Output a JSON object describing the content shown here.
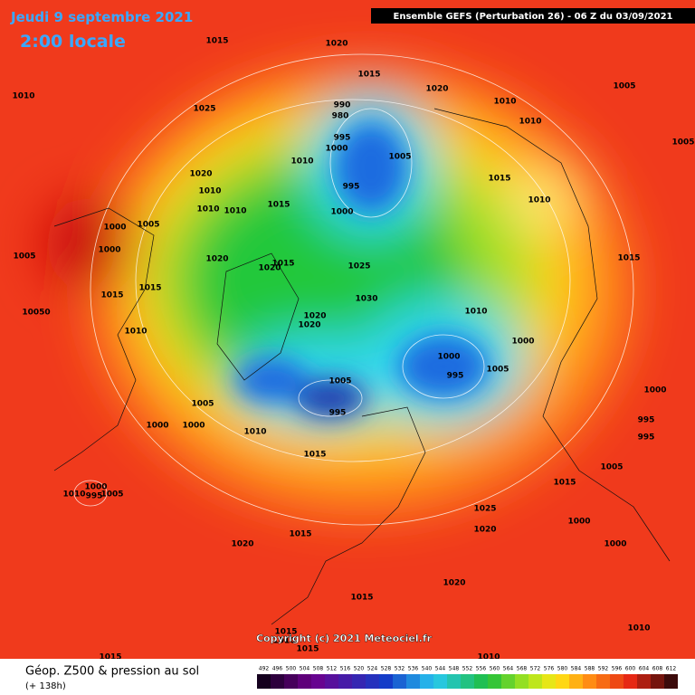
{
  "header": {
    "title": "Jeudi 9 septembre 2021",
    "subtitle": "2:00 locale",
    "model": "Ensemble GEFS  (Perturbation 26)  -  06 Z du 03/09/2021"
  },
  "copyright": "Copyright (c) 2021 Meteociel.fr",
  "footer": {
    "parameter": "Géop. Z500 & pression au sol",
    "lead": "(+ 138h)"
  },
  "legend": {
    "scale": [
      492,
      496,
      500,
      504,
      508,
      512,
      516,
      520,
      524,
      528,
      532,
      536,
      540,
      544,
      548,
      552,
      556,
      560,
      564,
      568,
      572,
      576,
      580,
      584,
      588,
      592,
      596,
      600,
      604,
      608,
      612
    ]
  },
  "isobar_labels": [
    "1015",
    "1020",
    "1010",
    "1025",
    "1015",
    "1020",
    "1005",
    "990",
    "980",
    "1010",
    "1010",
    "995",
    "1000",
    "1005",
    "1010",
    "1005",
    "1020",
    "995",
    "1015",
    "1010",
    "1010",
    "1010",
    "1010",
    "1015",
    "1000",
    "1000",
    "1005",
    "1000",
    "1005",
    "1020",
    "1015",
    "1020",
    "1025",
    "1015",
    "1015",
    "1015",
    "1030",
    "10050",
    "1020",
    "1020",
    "1010",
    "1010",
    "1000",
    "1000",
    "995",
    "1005",
    "1005",
    "1000",
    "1005",
    "995",
    "995",
    "995",
    "1000",
    "1000",
    "1010",
    "1015",
    "1005",
    "1015",
    "1025",
    "1000",
    "1020",
    "1015",
    "1020",
    "1000",
    "1020",
    "1015",
    "1010",
    "1015",
    "1010",
    "1015",
    "1015",
    "1010",
    "1010",
    "995",
    "1005",
    "1000"
  ]
}
